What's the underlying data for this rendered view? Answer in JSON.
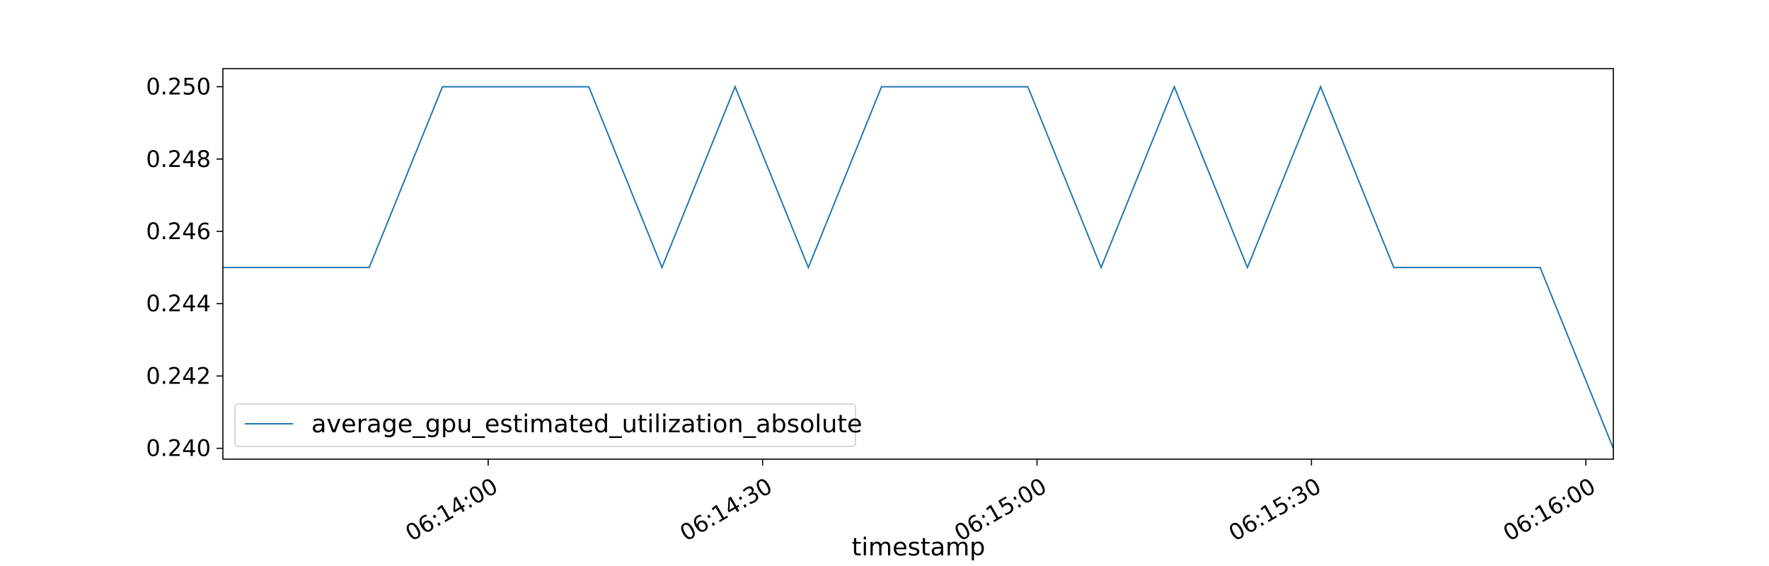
{
  "chart_data": {
    "type": "line",
    "title": "",
    "xlabel": "timestamp",
    "ylabel": "",
    "x_tick_labels": [
      "06:14:00",
      "06:14:30",
      "06:15:00",
      "06:15:30",
      "06:16:00"
    ],
    "y_tick_labels": [
      "0.240",
      "0.242",
      "0.244",
      "0.246",
      "0.248",
      "0.250"
    ],
    "ylim": [
      0.2397,
      0.2505
    ],
    "xlim": [
      "06:13:31",
      "06:16:03"
    ],
    "grid": false,
    "legend_position": "lower-left",
    "series": [
      {
        "name": "average_gpu_estimated_utilization_absolute",
        "color": "#1f77b4",
        "x": [
          "06:13:31",
          "06:13:47",
          "06:13:55",
          "06:14:11",
          "06:14:19",
          "06:14:27",
          "06:14:35",
          "06:14:43",
          "06:14:59",
          "06:15:07",
          "06:15:15",
          "06:15:23",
          "06:15:31",
          "06:15:39",
          "06:15:55",
          "06:16:03"
        ],
        "values": [
          0.245,
          0.245,
          0.25,
          0.25,
          0.245,
          0.25,
          0.245,
          0.25,
          0.25,
          0.245,
          0.25,
          0.245,
          0.25,
          0.245,
          0.245,
          0.24
        ]
      }
    ]
  }
}
